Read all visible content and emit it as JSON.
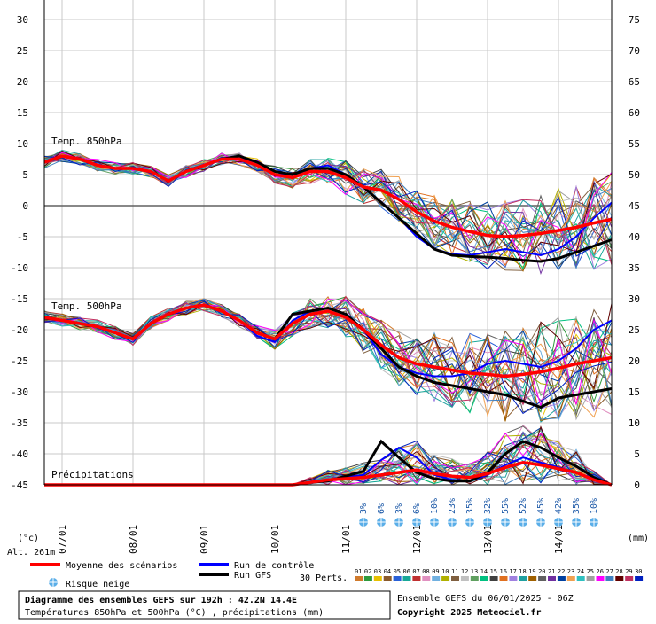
{
  "footer": {
    "title": "Diagramme des ensembles GEFS sur 192h : 42.2N 14.4E",
    "subtitle": "Températures 850hPa et 500hPa (°C) , précipitations (mm)",
    "run_info": "Ensemble GEFS du 06/01/2025 - 06Z",
    "copyright": "Copyright 2025 Meteociel.fr"
  },
  "legend": {
    "mean": "Moyenne des scénarios",
    "control": "Run de contrôle",
    "gfs": "Run GFS",
    "snow_risk": "Risque neige",
    "perts_label": "30 Perts.",
    "altitude": "Alt. 261m",
    "left_unit": "(°c)",
    "right_unit": "(mm)",
    "perts": [
      "01",
      "02",
      "03",
      "04",
      "05",
      "06",
      "07",
      "08",
      "09",
      "10",
      "11",
      "12",
      "13",
      "14",
      "15",
      "16",
      "17",
      "18",
      "19",
      "20",
      "21",
      "22",
      "23",
      "24",
      "25",
      "26",
      "27",
      "28",
      "29",
      "30"
    ],
    "pert_colors": [
      "#d07a2c",
      "#2e9a3c",
      "#e8c000",
      "#8a5a2b",
      "#2860d8",
      "#18a898",
      "#c03030",
      "#e090c0",
      "#70b0e0",
      "#b0b000",
      "#806040",
      "#c0c0c0",
      "#60a060",
      "#00c080",
      "#404040",
      "#e07020",
      "#a080e0",
      "#20a0a0",
      "#a06000",
      "#606060",
      "#7030a0",
      "#0040a0",
      "#f0a050",
      "#30c0c0",
      "#a0a0a0",
      "#ff00ff",
      "#4080c0",
      "#600000",
      "#c03060",
      "#0020c0"
    ]
  },
  "chart_data": {
    "type": "line",
    "xlabels": [
      "07/01",
      "08/01",
      "09/01",
      "10/01",
      "11/01",
      "12/01",
      "13/01",
      "14/01"
    ],
    "left_axis_ticks": [
      30,
      25,
      20,
      15,
      10,
      5,
      0,
      -5,
      -10,
      -15,
      -20,
      -25,
      -30,
      -35,
      -40,
      -45
    ],
    "right_axis_ticks": [
      75,
      70,
      65,
      60,
      55,
      50,
      45,
      40,
      35,
      30,
      25,
      20,
      15,
      10,
      5,
      0
    ],
    "annotations": [
      "Temp. 850hPa",
      "Temp. 500hPa",
      "Précipitations"
    ],
    "snow_risk": [
      "3%",
      "6%",
      "3%",
      "6%",
      "10%",
      "23%",
      "35%",
      "32%",
      "55%",
      "52%",
      "45%",
      "42%",
      "35%",
      "10%"
    ],
    "t850": {
      "hours": [
        0,
        6,
        12,
        18,
        24,
        30,
        36,
        42,
        48,
        54,
        60,
        66,
        72,
        78,
        84,
        90,
        96,
        102,
        108,
        114,
        120,
        126,
        132,
        138,
        144,
        150,
        156,
        162,
        168,
        174,
        180,
        186,
        192
      ],
      "mean": [
        7,
        8,
        7.5,
        6.5,
        6,
        6,
        5.5,
        4,
        5.5,
        6.5,
        7.5,
        7.5,
        6.5,
        5,
        4.5,
        5.5,
        5.5,
        4.5,
        3,
        2.5,
        1,
        -1,
        -2.5,
        -3.5,
        -4.2,
        -4.8,
        -5,
        -4.8,
        -4.5,
        -4,
        -3.5,
        -2.8,
        -2.2
      ],
      "control": [
        7,
        8,
        7.5,
        6.5,
        6,
        6,
        5.5,
        4,
        5.5,
        6.5,
        7.5,
        8,
        6.5,
        5,
        5,
        6,
        6.5,
        5,
        3,
        0.5,
        -2,
        -5,
        -7,
        -7.8,
        -8,
        -7.5,
        -7,
        -7.5,
        -8,
        -7,
        -5,
        -2,
        0.5
      ],
      "gfs": [
        7,
        8,
        7.5,
        6.5,
        6,
        6,
        5.5,
        4,
        5.5,
        6.5,
        7.5,
        8,
        7,
        5.5,
        5,
        6,
        6,
        5,
        3,
        0.5,
        -2,
        -4.5,
        -7,
        -8,
        -8.2,
        -8.3,
        -8.5,
        -8.8,
        -9,
        -8.5,
        -7.5,
        -6.5,
        -5.5
      ]
    },
    "t500": {
      "hours": [
        0,
        6,
        12,
        18,
        24,
        30,
        36,
        42,
        48,
        54,
        60,
        66,
        72,
        78,
        84,
        90,
        96,
        102,
        108,
        114,
        120,
        126,
        132,
        138,
        144,
        150,
        156,
        162,
        168,
        174,
        180,
        186,
        192
      ],
      "mean": [
        -18,
        -18.5,
        -19,
        -19.5,
        -20.5,
        -21.5,
        -19,
        -17.5,
        -16.5,
        -16,
        -17,
        -18.5,
        -20.5,
        -21.5,
        -19,
        -17.5,
        -17,
        -18,
        -20,
        -22.5,
        -24.5,
        -25.5,
        -26,
        -26.5,
        -27,
        -27.2,
        -27.5,
        -27.2,
        -26.8,
        -26.2,
        -25.5,
        -25,
        -24.5
      ],
      "control": [
        -18,
        -18.5,
        -19,
        -19.5,
        -20.5,
        -21.5,
        -19,
        -17.5,
        -16.5,
        -16,
        -17,
        -18.5,
        -21,
        -22,
        -18.5,
        -17,
        -16.5,
        -17.5,
        -20,
        -24,
        -26,
        -27,
        -27.5,
        -27.5,
        -27,
        -25.5,
        -25,
        -25.5,
        -26,
        -25,
        -23,
        -20,
        -18.5
      ],
      "gfs": [
        -18,
        -18.5,
        -19,
        -19.5,
        -20.5,
        -21.5,
        -19,
        -17.5,
        -16.5,
        -16,
        -17,
        -18.5,
        -20.5,
        -21.5,
        -17.5,
        -17,
        -16.5,
        -17.5,
        -20,
        -23,
        -26,
        -27.5,
        -28.5,
        -29,
        -29.5,
        -30,
        -30.5,
        -31.5,
        -32.5,
        -31,
        -30.5,
        -30,
        -29.5
      ]
    },
    "precip": {
      "hours": [
        0,
        6,
        12,
        18,
        24,
        30,
        36,
        42,
        48,
        54,
        60,
        66,
        72,
        78,
        84,
        90,
        96,
        102,
        108,
        114,
        120,
        126,
        132,
        138,
        144,
        150,
        156,
        162,
        168,
        174,
        180,
        186,
        192
      ],
      "mean": [
        0,
        0,
        0,
        0,
        0,
        0,
        0,
        0,
        0,
        0,
        0,
        0,
        0,
        0,
        0,
        0.2,
        0.4,
        0.5,
        0.6,
        0.8,
        1.0,
        1.2,
        0.9,
        0.7,
        0.6,
        0.9,
        1.4,
        1.8,
        1.6,
        1.3,
        1.0,
        0.4,
        0
      ],
      "control": [
        0,
        0,
        0,
        0,
        0,
        0,
        0,
        0,
        0,
        0,
        0,
        0,
        0,
        0,
        0,
        0.2,
        0.3,
        0.6,
        0.8,
        2.0,
        3.0,
        2.2,
        0.8,
        0.4,
        0.3,
        0.8,
        1.6,
        2.2,
        1.8,
        1.4,
        1.0,
        0.5,
        0
      ],
      "gfs": [
        0,
        0,
        0,
        0,
        0,
        0,
        0,
        0,
        0,
        0,
        0,
        0,
        0,
        0,
        0,
        0.2,
        0.3,
        0.7,
        1.1,
        3.5,
        2.2,
        1.0,
        0.5,
        0.3,
        0.3,
        1.0,
        2.5,
        3.5,
        3.0,
        2.2,
        1.5,
        0.6,
        0
      ]
    }
  }
}
